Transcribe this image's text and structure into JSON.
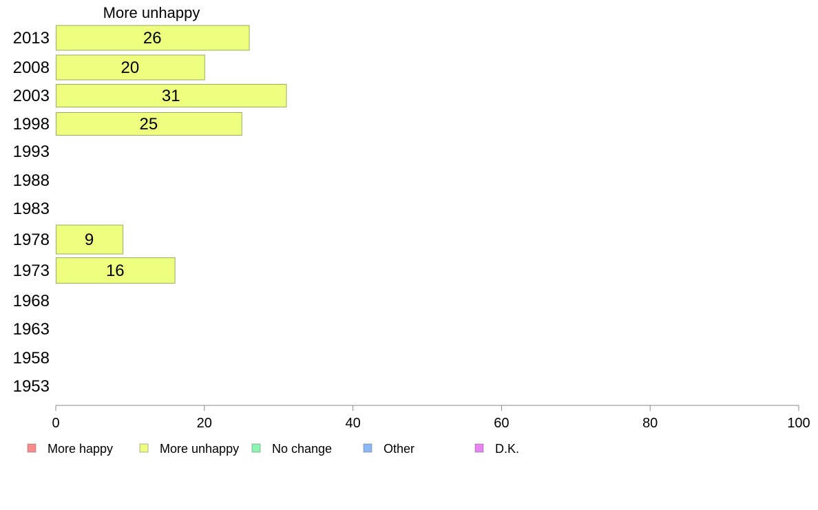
{
  "chart_data": {
    "type": "bar",
    "orientation": "horizontal",
    "title": "More unhappy",
    "categories": [
      "2013",
      "2008",
      "2003",
      "1998",
      "1993",
      "1988",
      "1983",
      "1978",
      "1973",
      "1968",
      "1963",
      "1958",
      "1953"
    ],
    "series": [
      {
        "name": "More unhappy",
        "values": [
          26,
          20,
          31,
          25,
          null,
          null,
          null,
          9,
          16,
          null,
          null,
          null,
          null
        ]
      }
    ],
    "xlim": [
      0,
      100
    ],
    "xticks": [
      "0",
      "20",
      "40",
      "60",
      "80",
      "100"
    ],
    "grid": false,
    "legend_position": "bottom",
    "legend": [
      {
        "label": "More happy",
        "color": "#fb8a8a"
      },
      {
        "label": "More unhappy",
        "color": "#eeff80"
      },
      {
        "label": "No change",
        "color": "#8cf5b4"
      },
      {
        "label": "Other",
        "color": "#8ab8f5"
      },
      {
        "label": "D.K.",
        "color": "#ea83f2"
      }
    ],
    "colors": {
      "bar_fill": "#eeff80",
      "bar_stroke": "#9aab5e",
      "axis": "#888888"
    }
  }
}
